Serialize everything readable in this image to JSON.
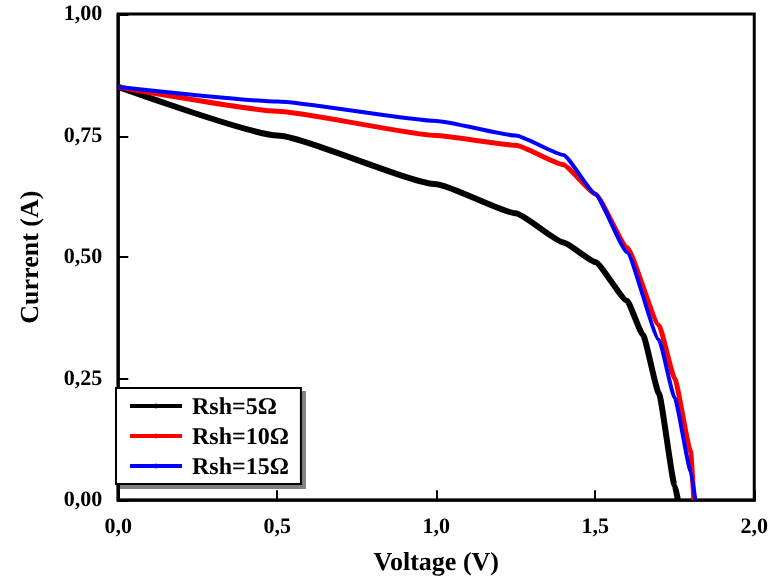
{
  "chart_data": {
    "type": "line",
    "xlabel": "Voltage (V)",
    "ylabel": "Current (A)",
    "xlim": [
      0,
      2
    ],
    "xticks": [
      {
        "value": 0,
        "label": "0,0"
      },
      {
        "value": 0.5,
        "label": "0,5"
      },
      {
        "value": 1,
        "label": "1,0"
      },
      {
        "value": 1.5,
        "label": "1,5"
      },
      {
        "value": 2,
        "label": "2,0"
      }
    ],
    "ylim": [
      0,
      1
    ],
    "yticks": [
      {
        "value": 0,
        "label": "0,00"
      },
      {
        "value": 0.25,
        "label": "0,25"
      },
      {
        "value": 0.5,
        "label": "0,50"
      },
      {
        "value": 0.75,
        "label": "0,75"
      },
      {
        "value": 1,
        "label": "1,00"
      }
    ],
    "grid": false,
    "legend": "bottom left",
    "marker": "none",
    "line_style": "solid",
    "series": [
      {
        "name": "Rsh=5Ω",
        "color": "#000000",
        "x": [
          0,
          0.5,
          1.0,
          1.25,
          1.4,
          1.5,
          1.6,
          1.65,
          1.7,
          1.75,
          1.76
        ],
        "values": [
          0.85,
          0.75,
          0.65,
          0.59,
          0.53,
          0.49,
          0.41,
          0.34,
          0.22,
          0.03,
          0
        ]
      },
      {
        "name": "Rsh=10Ω",
        "color": "#ff0000",
        "x": [
          0,
          0.5,
          1.0,
          1.25,
          1.4,
          1.5,
          1.6,
          1.7,
          1.75,
          1.8,
          1.81
        ],
        "values": [
          0.85,
          0.8,
          0.75,
          0.73,
          0.69,
          0.63,
          0.52,
          0.36,
          0.25,
          0.1,
          0
        ]
      },
      {
        "name": "Rsh=15Ω",
        "color": "#0000ff",
        "x": [
          0,
          0.5,
          1.0,
          1.25,
          1.4,
          1.5,
          1.6,
          1.7,
          1.75,
          1.8,
          1.815
        ],
        "values": [
          0.85,
          0.82,
          0.78,
          0.75,
          0.71,
          0.63,
          0.51,
          0.33,
          0.21,
          0.06,
          0
        ]
      }
    ]
  }
}
